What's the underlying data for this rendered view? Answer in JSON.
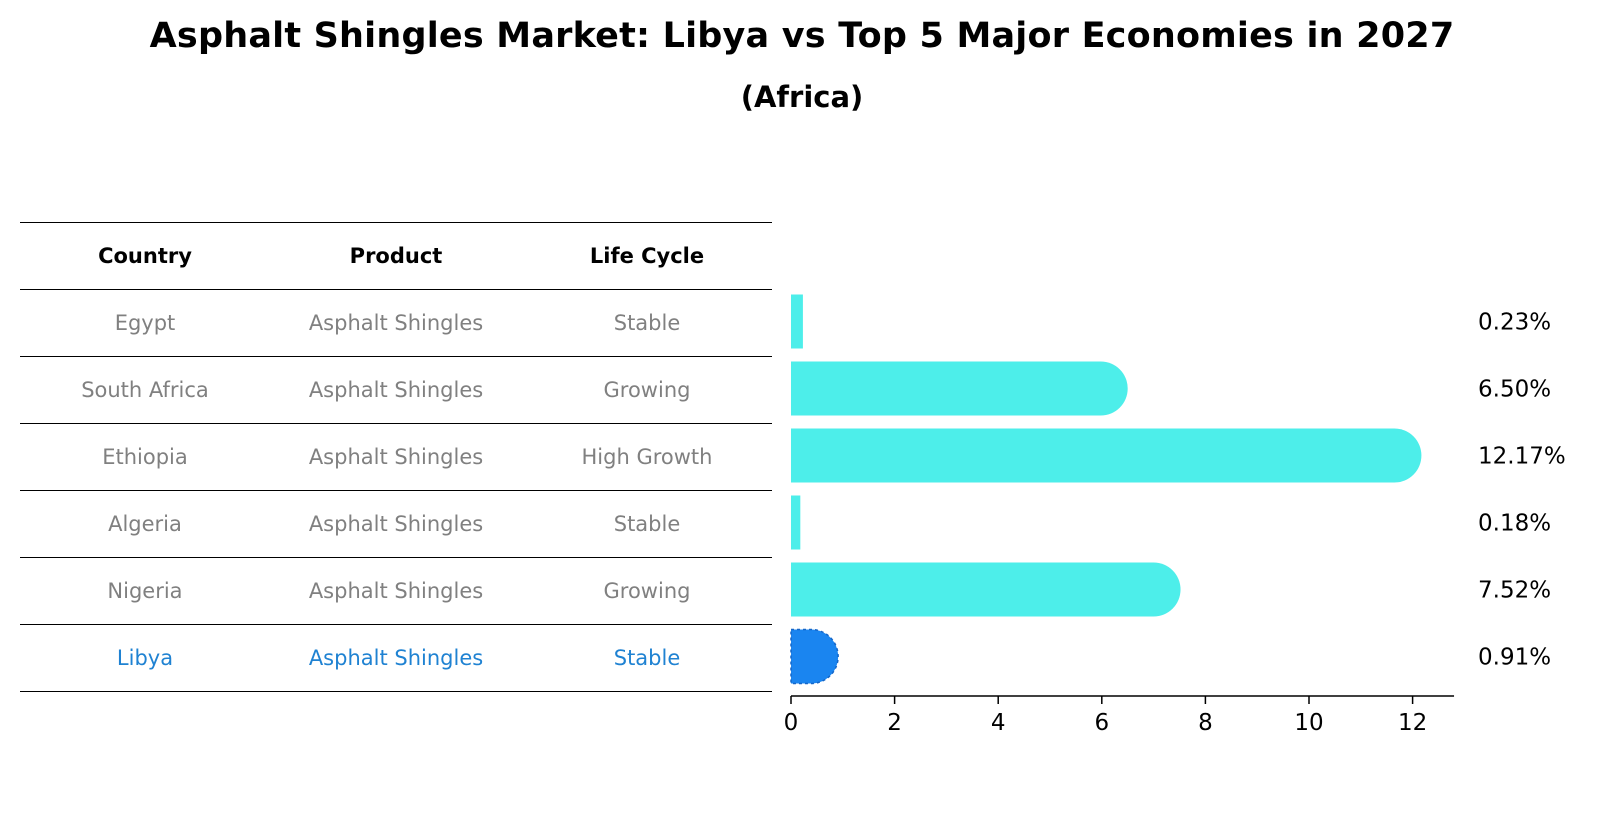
{
  "title": "Asphalt Shingles Market: Libya vs Top 5 Major Economies in 2027",
  "subtitle": "(Africa)",
  "table": {
    "headers": [
      "Country",
      "Product",
      "Life Cycle"
    ],
    "rows": [
      {
        "country": "Egypt",
        "product": "Asphalt Shingles",
        "life_cycle": "Stable"
      },
      {
        "country": "South Africa",
        "product": "Asphalt Shingles",
        "life_cycle": "Growing"
      },
      {
        "country": "Ethiopia",
        "product": "Asphalt Shingles",
        "life_cycle": "High Growth"
      },
      {
        "country": "Algeria",
        "product": "Asphalt Shingles",
        "life_cycle": "Stable"
      },
      {
        "country": "Nigeria",
        "product": "Asphalt Shingles",
        "life_cycle": "Growing"
      },
      {
        "country": "Libya",
        "product": "Asphalt Shingles",
        "life_cycle": "Stable"
      }
    ]
  },
  "colors": {
    "bar": "#4deeea",
    "highlight_bar": "#1a85f0",
    "highlight_text": "#1f82d2",
    "muted_text": "#808080"
  },
  "chart_data": {
    "type": "bar",
    "orientation": "horizontal",
    "categories": [
      "Egypt",
      "South Africa",
      "Ethiopia",
      "Algeria",
      "Nigeria",
      "Libya"
    ],
    "values": [
      0.23,
      6.5,
      12.17,
      0.18,
      7.52,
      0.91
    ],
    "value_labels": [
      "0.23%",
      "6.50%",
      "12.17%",
      "0.18%",
      "7.52%",
      "0.91%"
    ],
    "highlight": "Libya",
    "xlim": [
      0,
      12.8
    ],
    "xticks": [
      0,
      2,
      4,
      6,
      8,
      10,
      12
    ],
    "title": "Asphalt Shingles Market: Libya vs Top 5 Major Economies in 2027",
    "subtitle": "(Africa)",
    "xlabel": "",
    "ylabel": ""
  }
}
